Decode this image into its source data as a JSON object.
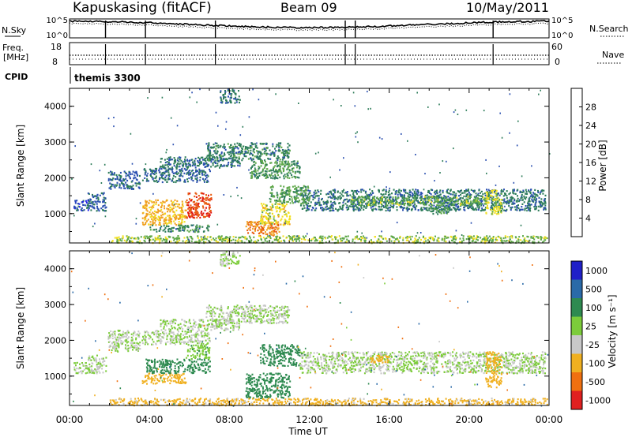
{
  "header": {
    "station": "Kapuskasing (fitACF)",
    "beam": "Beam 09",
    "date": "10/May/2011"
  },
  "status_panels": {
    "nsky_label": "N.Sky",
    "nsearch_label": "N.Search",
    "noise_ticks_left": [
      "10^5",
      "10^0"
    ],
    "noise_ticks_right": [
      "10^5",
      "10^0"
    ],
    "freq_label_line1": "Freq.",
    "freq_label_line2": "[MHz]",
    "freq_ticks": [
      "18",
      "8"
    ],
    "nave_label": "Nave",
    "nave_ticks": [
      "60",
      "0"
    ],
    "cpid_label": "CPID",
    "cpid_value": "themis 3300"
  },
  "axes": {
    "ylabel": "Slant Range [km]",
    "xlabel": "Time UT",
    "x_tick_labels": [
      "00:00",
      "04:00",
      "08:00",
      "12:00",
      "16:00",
      "20:00",
      "00:00"
    ],
    "y_tick_labels": [
      "1000",
      "2000",
      "3000",
      "4000"
    ]
  },
  "colorbars": {
    "power": {
      "label": "Power [dB]",
      "tick_labels": [
        "4",
        "8",
        "12",
        "16",
        "20",
        "24",
        "28"
      ],
      "colors": [
        "#1f1fe6",
        "#2a4fb0",
        "#2e7d5a",
        "#5fa84a",
        "#f2e022",
        "#f0a020",
        "#e85a10",
        "#e01010"
      ]
    },
    "velocity": {
      "label": "Velocity [m s⁻¹]",
      "tick_labels": [
        "1000",
        "500",
        "100",
        "25",
        "-25",
        "-100",
        "-500",
        "-1000"
      ],
      "colors": [
        "#2020c8",
        "#2a6aa8",
        "#2e8a50",
        "#7ccc3a",
        "#c8c8c8",
        "#f0b020",
        "#f07010",
        "#e02020"
      ]
    }
  },
  "chart_data": [
    {
      "type": "heatmap",
      "title": "Power",
      "xlabel": "Time UT",
      "ylabel": "Slant Range [km]",
      "xlim": [
        0,
        24
      ],
      "ylim": [
        180,
        4500
      ],
      "colorbar_label": "Power [dB]",
      "cbar_range": [
        0,
        32
      ],
      "regions": [
        {
          "t": [
            0.9,
            1.8
          ],
          "r": [
            1100,
            1600
          ],
          "v": 7
        },
        {
          "t": [
            1.9,
            3.5
          ],
          "r": [
            1700,
            2200
          ],
          "v": 7
        },
        {
          "t": [
            3.6,
            7.0
          ],
          "r": [
            1900,
            2300
          ],
          "v": 8
        },
        {
          "t": [
            4.5,
            8.5
          ],
          "r": [
            2300,
            2600
          ],
          "v": 9
        },
        {
          "t": [
            6.8,
            11.0
          ],
          "r": [
            2500,
            3000
          ],
          "v": 10
        },
        {
          "t": [
            9.0,
            11.5
          ],
          "r": [
            2000,
            2500
          ],
          "v": 12
        },
        {
          "t": [
            11.5,
            23.8
          ],
          "r": [
            1100,
            1700
          ],
          "v": 9
        },
        {
          "t": [
            14.0,
            21.0
          ],
          "r": [
            1250,
            1500
          ],
          "v": 14
        },
        {
          "t": [
            0.2,
            1.0
          ],
          "r": [
            1100,
            1400
          ],
          "v": 6
        },
        {
          "t": [
            3.6,
            5.8
          ],
          "r": [
            700,
            1400
          ],
          "v": 21
        },
        {
          "t": [
            5.8,
            7.1
          ],
          "r": [
            900,
            1600
          ],
          "v": 27
        },
        {
          "t": [
            4.0,
            7.0
          ],
          "r": [
            500,
            700
          ],
          "v": 10
        },
        {
          "t": [
            8.8,
            10.5
          ],
          "r": [
            400,
            800
          ],
          "v": 24
        },
        {
          "t": [
            9.5,
            11.0
          ],
          "r": [
            700,
            1300
          ],
          "v": 18
        },
        {
          "t": [
            10.0,
            12.0
          ],
          "r": [
            1300,
            1800
          ],
          "v": 13
        },
        {
          "t": [
            2.0,
            23.9
          ],
          "r": [
            200,
            400
          ],
          "v": 15
        },
        {
          "t": [
            7.5,
            8.5
          ],
          "r": [
            4100,
            4500
          ],
          "v": 9
        },
        {
          "t": [
            18.0,
            19.0
          ],
          "r": [
            1000,
            1200
          ],
          "v": 12
        },
        {
          "t": [
            20.8,
            21.6
          ],
          "r": [
            1000,
            1700
          ],
          "v": 17
        }
      ]
    },
    {
      "type": "heatmap",
      "title": "Velocity",
      "xlabel": "Time UT",
      "ylabel": "Slant Range [km]",
      "xlim": [
        0,
        24
      ],
      "ylim": [
        180,
        4500
      ],
      "colorbar_label": "Velocity [m s⁻¹]",
      "regions": [
        {
          "t": [
            0.9,
            1.8
          ],
          "r": [
            1100,
            1600
          ],
          "v": 0
        },
        {
          "t": [
            1.9,
            3.5
          ],
          "r": [
            1700,
            2300
          ],
          "v": 0
        },
        {
          "t": [
            3.6,
            7.0
          ],
          "r": [
            1900,
            2300
          ],
          "v": 0
        },
        {
          "t": [
            4.5,
            8.5
          ],
          "r": [
            2300,
            2600
          ],
          "v": 0
        },
        {
          "t": [
            6.8,
            11.0
          ],
          "r": [
            2500,
            3000
          ],
          "v": 0
        },
        {
          "t": [
            11.5,
            23.8
          ],
          "r": [
            1100,
            1700
          ],
          "v": 0
        },
        {
          "t": [
            0.2,
            1.0
          ],
          "r": [
            1100,
            1400
          ],
          "v": 0
        },
        {
          "t": [
            3.6,
            5.8
          ],
          "r": [
            800,
            1100
          ],
          "v": -150
        },
        {
          "t": [
            3.8,
            7.0
          ],
          "r": [
            1100,
            1500
          ],
          "v": 150
        },
        {
          "t": [
            5.8,
            7.0
          ],
          "r": [
            1500,
            1900
          ],
          "v": 40
        },
        {
          "t": [
            8.8,
            11.0
          ],
          "r": [
            400,
            1100
          ],
          "v": 120
        },
        {
          "t": [
            9.5,
            11.5
          ],
          "r": [
            1300,
            1900
          ],
          "v": 90
        },
        {
          "t": [
            2.0,
            23.9
          ],
          "r": [
            200,
            400
          ],
          "v": -80
        },
        {
          "t": [
            7.5,
            8.5
          ],
          "r": [
            4100,
            4500
          ],
          "v": 0
        },
        {
          "t": [
            15.0,
            16.0
          ],
          "r": [
            1400,
            1600
          ],
          "v": -120
        },
        {
          "t": [
            20.8,
            21.6
          ],
          "r": [
            700,
            1700
          ],
          "v": -200
        }
      ]
    }
  ]
}
